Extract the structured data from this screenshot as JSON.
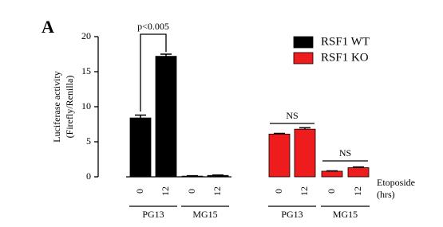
{
  "chart_data": {
    "type": "bar",
    "panel_label": "A",
    "ylabel": [
      "Luciferase activity",
      "(Firefly/Renilla)"
    ],
    "categories": [
      "0",
      "12",
      "0",
      "12",
      "0",
      "12",
      "0",
      "12"
    ],
    "group_labels": [
      "PG13",
      "MG15",
      "PG13",
      "MG15"
    ],
    "xlabel": [
      "Etoposide",
      "(hrs)"
    ],
    "series": [
      {
        "name": "RSF1 WT",
        "color": "#000000",
        "values": [
          8.4,
          17.2,
          0.1,
          0.2,
          null,
          null,
          null,
          null
        ],
        "errors": [
          0.4,
          0.3,
          0.05,
          0.05,
          null,
          null,
          null,
          null
        ]
      },
      {
        "name": "RSF1 KO",
        "color": "#ee1c1c",
        "values": [
          null,
          null,
          null,
          null,
          6.1,
          6.8,
          0.8,
          1.3
        ],
        "errors": [
          null,
          null,
          null,
          null,
          0.1,
          0.2,
          0.05,
          0.1
        ]
      }
    ],
    "annotations": [
      "p<0.005",
      "NS",
      "NS"
    ],
    "ylim": [
      0,
      20
    ],
    "yticks": [
      0,
      5,
      10,
      15,
      20
    ]
  }
}
